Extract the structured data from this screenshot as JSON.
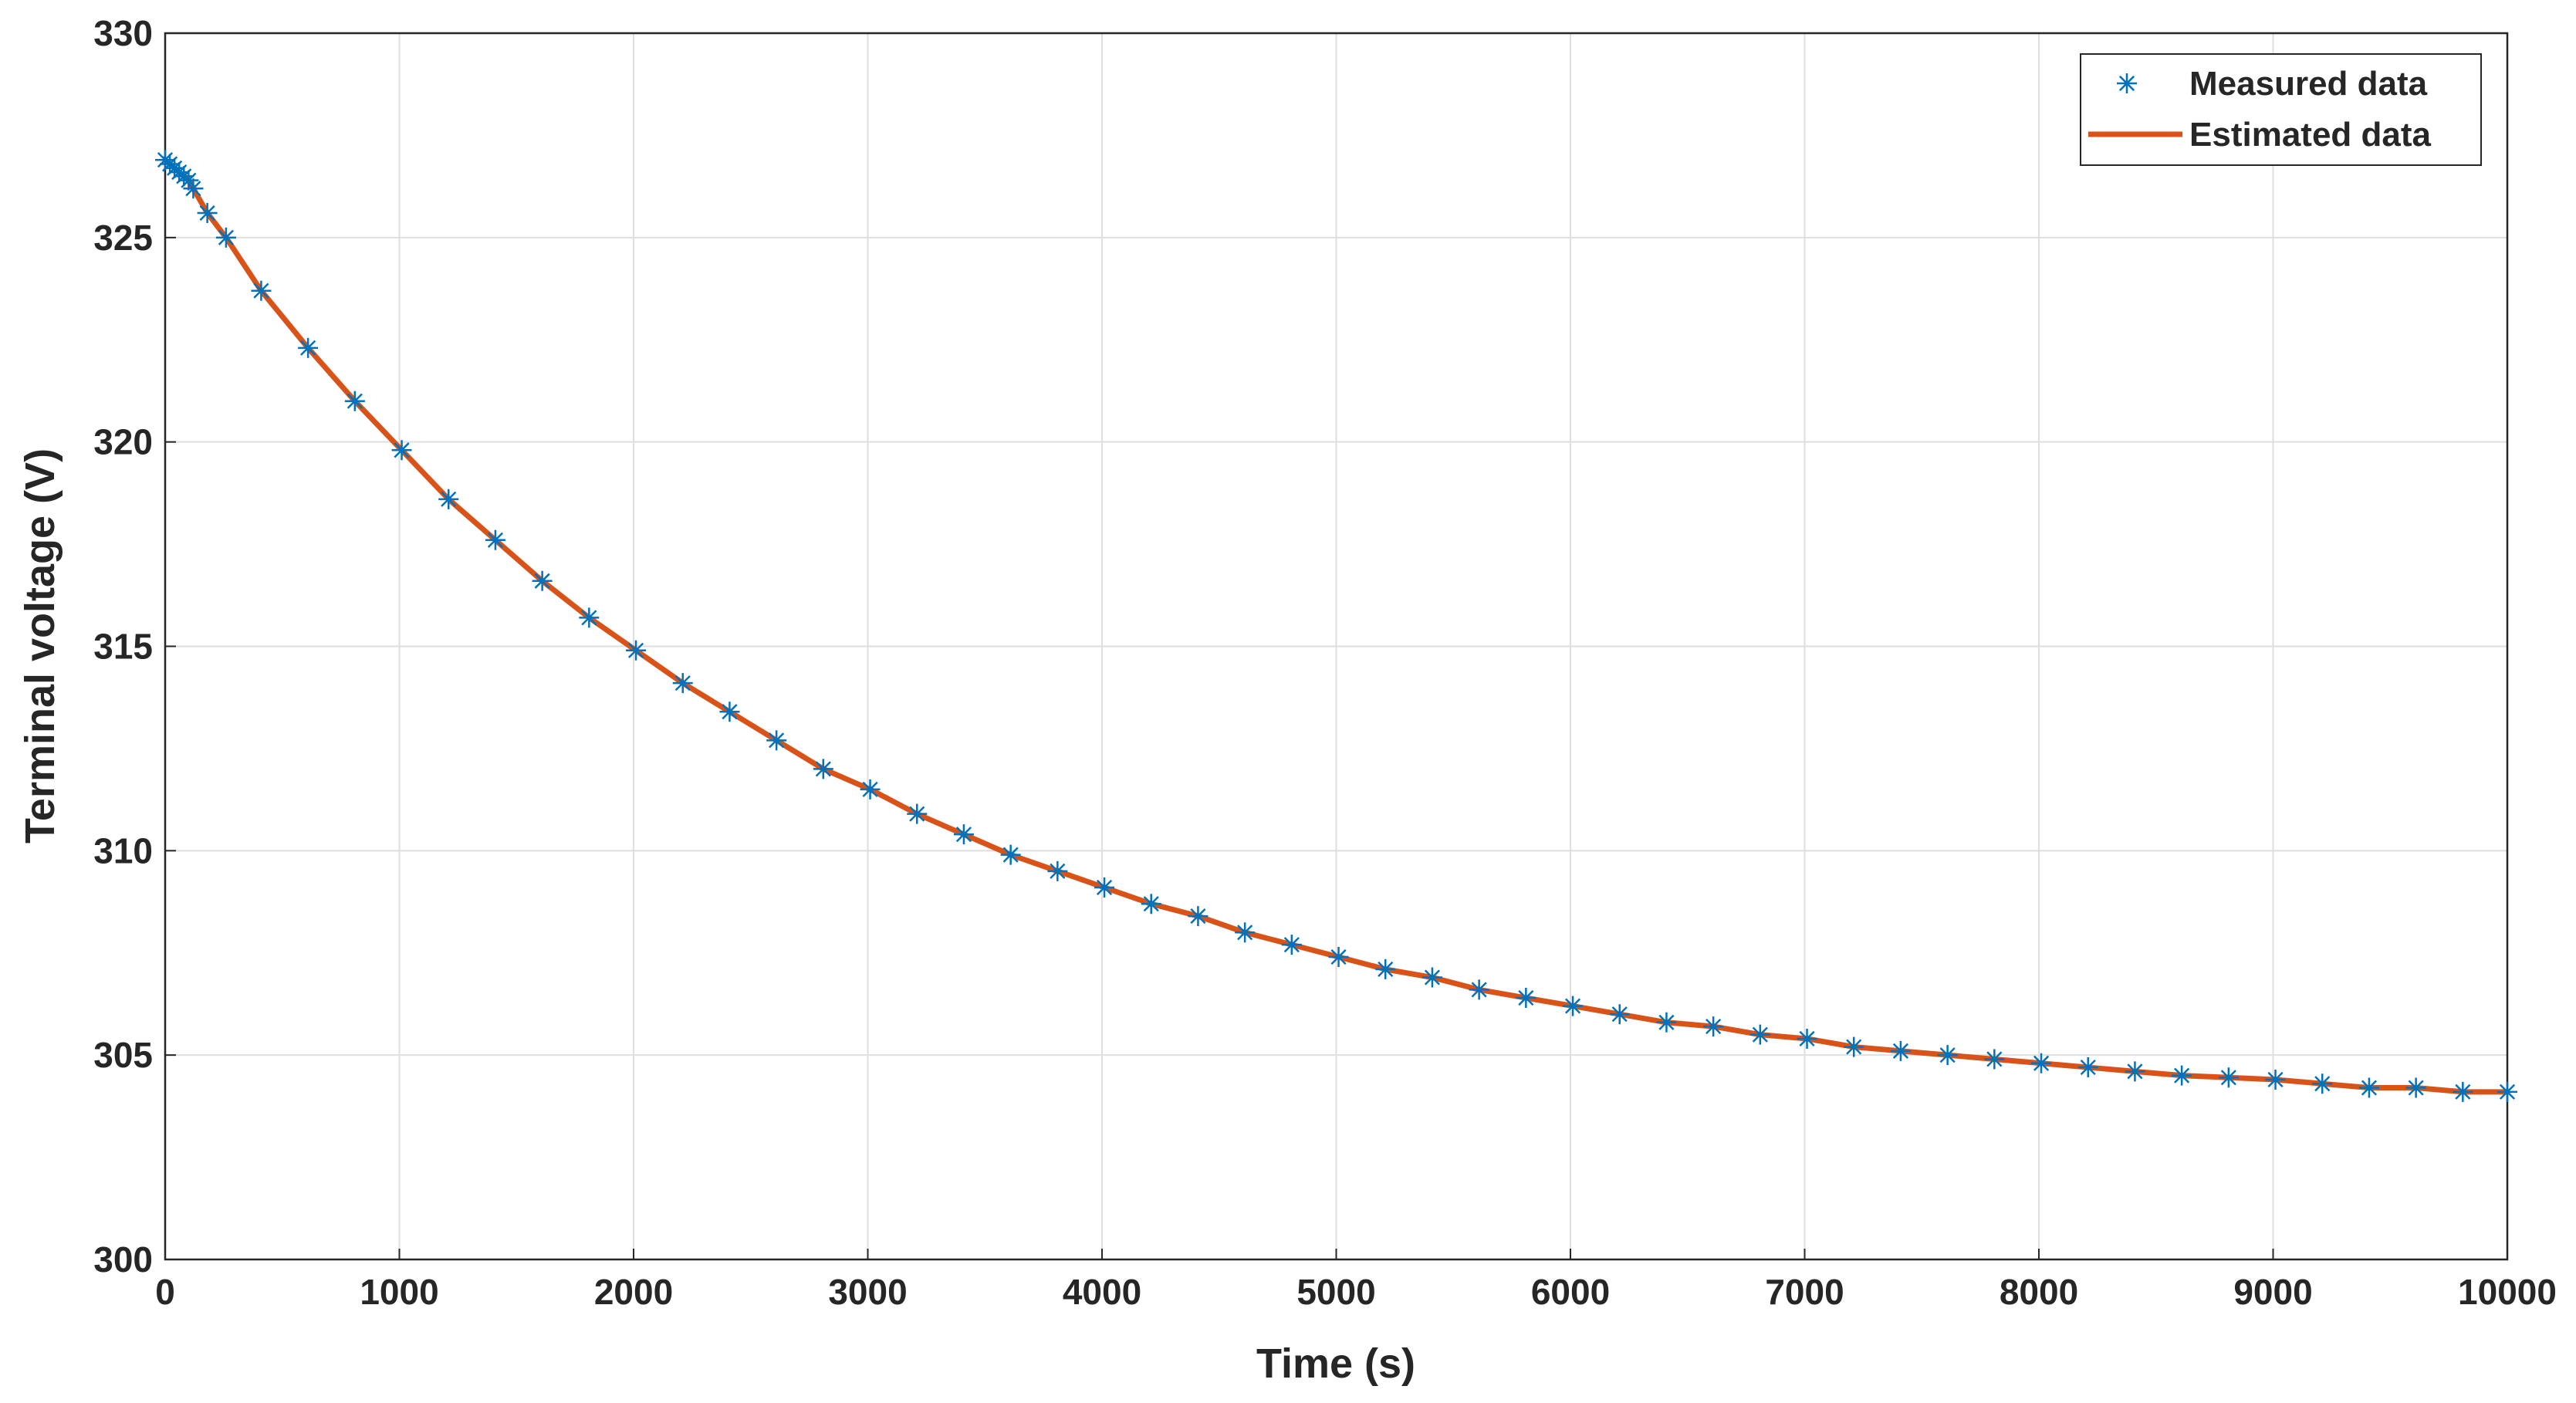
{
  "chart_data": {
    "type": "line",
    "x_label": "Time (s)",
    "y_label": "Terminal voltage (V)",
    "x": [
      0,
      20,
      40,
      60,
      80,
      100,
      120,
      180,
      260,
      410,
      610,
      810,
      1010,
      1210,
      1410,
      1610,
      1810,
      2010,
      2210,
      2410,
      2610,
      2810,
      3010,
      3210,
      3410,
      3610,
      3810,
      4010,
      4210,
      4410,
      4610,
      4810,
      5010,
      5210,
      5410,
      5610,
      5810,
      6010,
      6210,
      6410,
      6610,
      6810,
      7010,
      7210,
      7410,
      7610,
      7810,
      8010,
      8210,
      8410,
      8610,
      8810,
      9010,
      9210,
      9410,
      9610,
      9810,
      10000
    ],
    "series": [
      {
        "name": "Measured data",
        "color": "#0072bd",
        "marker": "asterisk",
        "values": [
          326.9,
          326.8,
          326.7,
          326.6,
          326.5,
          326.4,
          326.2,
          325.6,
          325.0,
          323.7,
          322.3,
          321.0,
          319.8,
          318.6,
          317.6,
          316.6,
          315.7,
          314.9,
          314.1,
          313.4,
          312.7,
          312.0,
          311.5,
          310.9,
          310.4,
          309.9,
          309.5,
          309.1,
          308.7,
          308.4,
          308.0,
          307.7,
          307.4,
          307.1,
          306.9,
          306.6,
          306.4,
          306.2,
          306.0,
          305.8,
          305.7,
          305.5,
          305.4,
          305.2,
          305.1,
          305.0,
          304.9,
          304.8,
          304.7,
          304.6,
          304.5,
          304.45,
          304.4,
          304.3,
          304.2,
          304.2,
          304.1,
          304.1
        ]
      },
      {
        "name": "Estimated data",
        "color": "#d95319",
        "marker": "none",
        "values": [
          326.9,
          326.8,
          326.7,
          326.6,
          326.5,
          326.4,
          326.2,
          325.6,
          325.0,
          323.7,
          322.3,
          321.0,
          319.8,
          318.6,
          317.6,
          316.6,
          315.7,
          314.9,
          314.1,
          313.4,
          312.7,
          312.0,
          311.5,
          310.9,
          310.4,
          309.9,
          309.5,
          309.1,
          308.7,
          308.4,
          308.0,
          307.7,
          307.4,
          307.1,
          306.9,
          306.6,
          306.4,
          306.2,
          306.0,
          305.8,
          305.7,
          305.5,
          305.4,
          305.2,
          305.1,
          305.0,
          304.9,
          304.8,
          304.7,
          304.6,
          304.5,
          304.45,
          304.4,
          304.3,
          304.2,
          304.2,
          304.1,
          304.1
        ]
      }
    ],
    "xlim": [
      0,
      10000
    ],
    "xticks": [
      0,
      1000,
      2000,
      3000,
      4000,
      5000,
      6000,
      7000,
      8000,
      9000,
      10000
    ],
    "ylim": [
      300,
      330
    ],
    "yticks": [
      300,
      305,
      310,
      315,
      320,
      325,
      330
    ],
    "grid": true,
    "legend": "upper right"
  }
}
